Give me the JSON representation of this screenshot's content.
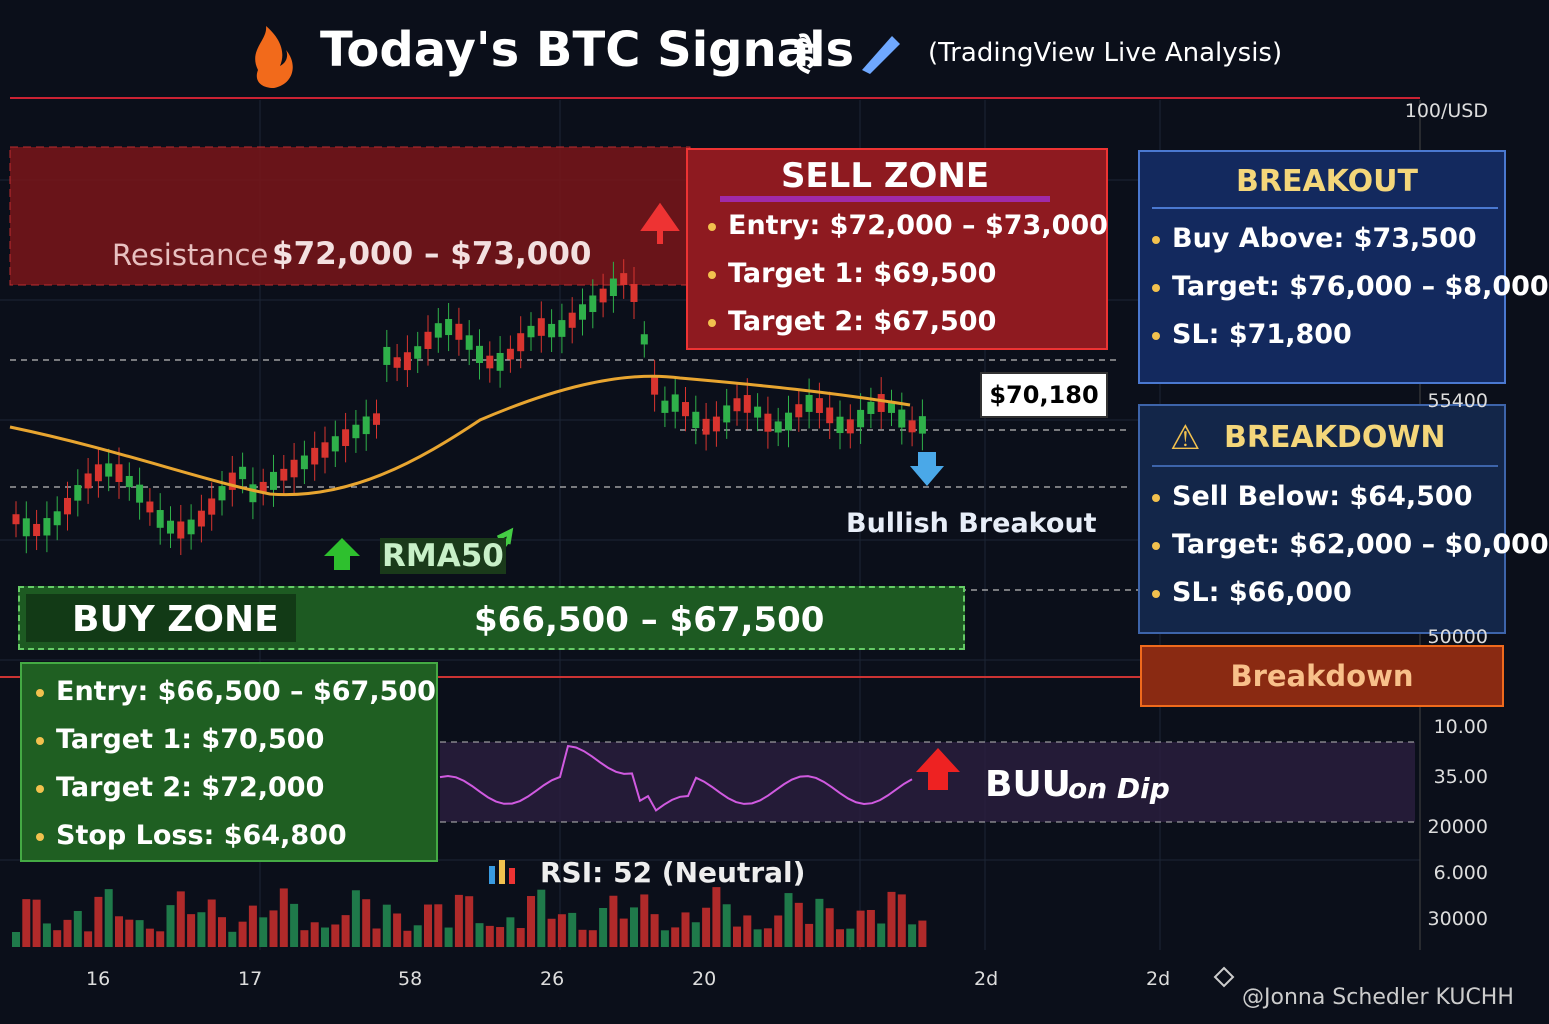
{
  "header": {
    "title": "Today's BTC Signals",
    "title_suffix": "है",
    "subtitle": "(TradingView Live Analysis)"
  },
  "price_axis": {
    "labels": [
      "100/USD",
      "55400",
      "50000",
      "10.00",
      "35.00",
      "20000",
      "6.000",
      "30000"
    ]
  },
  "price_tag": "$70,180",
  "resistance": {
    "label": "Resistance",
    "range": "$72,000 – $73,000"
  },
  "sell_zone": {
    "title": "SELL ZONE",
    "items": [
      "Entry: $72,000 – $73,000",
      "Target 1: $69,500",
      "Target 2: $67,500"
    ]
  },
  "breakout": {
    "title": "BREAKOUT",
    "items": [
      "Buy Above: $73,500",
      "Target: $76,000 – $8,000",
      "SL: $71,800"
    ]
  },
  "breakdown": {
    "title": "BREAKDOWN",
    "items": [
      "Sell Below: $64,500",
      "Target: $62,000 – $0,000",
      "SL: $66,000"
    ]
  },
  "breakdown_button": "Breakdown",
  "bullish_note": "Bullish Breakout",
  "ma_label": "RMA50",
  "buy_zone": {
    "title": "BUY ZONE",
    "range": "$66,500 – $67,500",
    "items": [
      "Entry: $66,500 – $67,500",
      "Target 1: $70,500",
      "Target 2: $72,000",
      "Stop Loss: $64,800"
    ]
  },
  "buy_dip": {
    "word": "BUU",
    "tail": "on Dip"
  },
  "rsi_label": "RSI: 52 (Neutral)",
  "x_axis": {
    "labels": [
      "16",
      "17",
      "58",
      "26",
      "20",
      "2d",
      "2d"
    ]
  },
  "watermark": "@Jonna Schedler KUCHH"
}
